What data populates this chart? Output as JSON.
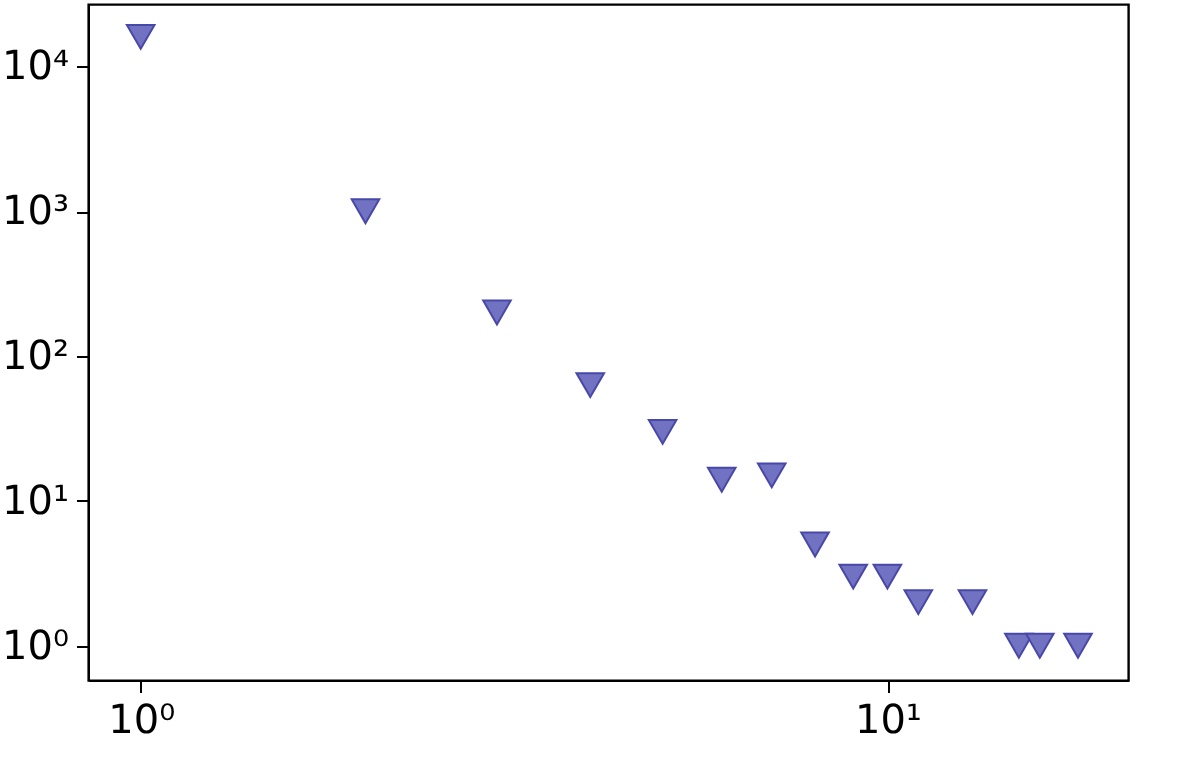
{
  "chart_data": {
    "type": "scatter",
    "log": "xy",
    "marker": "triangle-down",
    "grid": false,
    "x": [
      1,
      2,
      3,
      4,
      5,
      6,
      7,
      8,
      9,
      10,
      11,
      13,
      15,
      16,
      18
    ],
    "series": [
      {
        "color": "#7272c2",
        "values": [
          16000,
          1000,
          200,
          63,
          30,
          14,
          15,
          5,
          3,
          3,
          2,
          2,
          1,
          1,
          1
        ]
      }
    ],
    "xlim": [
      0.85,
      21
    ],
    "ylim": [
      0.58,
      27000
    ],
    "xticks": [
      {
        "value": 1,
        "label": "10⁰"
      },
      {
        "value": 10,
        "label": "10¹"
      }
    ],
    "yticks": [
      {
        "value": 1,
        "label": "10⁰"
      },
      {
        "value": 10,
        "label": "10¹"
      },
      {
        "value": 100,
        "label": "10²"
      },
      {
        "value": 1000,
        "label": "10³"
      },
      {
        "value": 10000,
        "label": "10⁴"
      }
    ]
  }
}
